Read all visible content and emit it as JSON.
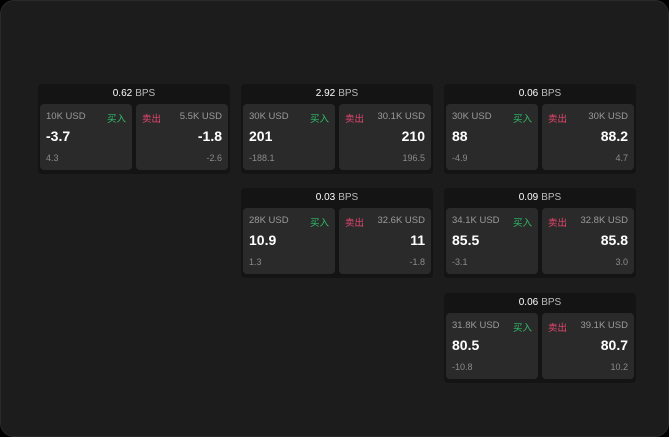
{
  "labels": {
    "buy": "买入",
    "sell": "卖出",
    "unit": "BPS"
  },
  "colors": {
    "buy": "#2fbf6a",
    "sell": "#e5456f"
  },
  "cards": [
    {
      "col": 0,
      "row": 0,
      "spread": "0.62",
      "bid": {
        "size": "10K USD",
        "price": "-3.7",
        "change": "4.3"
      },
      "ask": {
        "size": "5.5K USD",
        "price": "-1.8",
        "change": "-2.6"
      }
    },
    {
      "col": 1,
      "row": 0,
      "spread": "2.92",
      "bid": {
        "size": "30K USD",
        "price": "201",
        "change": "-188.1"
      },
      "ask": {
        "size": "30.1K USD",
        "price": "210",
        "change": "196.5"
      }
    },
    {
      "col": 2,
      "row": 0,
      "spread": "0.06",
      "bid": {
        "size": "30K USD",
        "price": "88",
        "change": "-4.9"
      },
      "ask": {
        "size": "30K USD",
        "price": "88.2",
        "change": "4.7"
      }
    },
    {
      "col": 1,
      "row": 1,
      "spread": "0.03",
      "bid": {
        "size": "28K USD",
        "price": "10.9",
        "change": "1.3"
      },
      "ask": {
        "size": "32.6K USD",
        "price": "11",
        "change": "-1.8"
      }
    },
    {
      "col": 2,
      "row": 1,
      "spread": "0.09",
      "bid": {
        "size": "34.1K USD",
        "price": "85.5",
        "change": "-3.1"
      },
      "ask": {
        "size": "32.8K USD",
        "price": "85.8",
        "change": "3.0"
      }
    },
    {
      "col": 2,
      "row": 2,
      "spread": "0.06",
      "bid": {
        "size": "31.8K USD",
        "price": "80.5",
        "change": "-10.8"
      },
      "ask": {
        "size": "39.1K USD",
        "price": "80.7",
        "change": "10.2"
      }
    }
  ]
}
